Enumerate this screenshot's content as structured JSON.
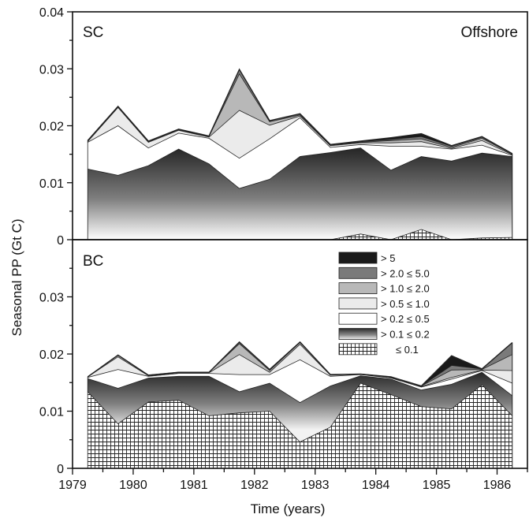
{
  "figure": {
    "ylabel": "Seasonal PP (Gt C)",
    "xlabel": "Time (years)"
  },
  "chart_data": [
    {
      "type": "area",
      "panel": "SC",
      "panel_label": "SC",
      "region_label": "Offshore",
      "stacked": true,
      "ylim": [
        0,
        0.04
      ],
      "yticks": [
        "0.04",
        "0.03",
        "0.02",
        "0.01",
        "0"
      ],
      "xlim": [
        1979,
        1986.5
      ],
      "x": [
        1979.25,
        1979.75,
        1980.25,
        1980.75,
        1981.25,
        1981.75,
        1982.25,
        1982.75,
        1983.25,
        1983.75,
        1984.25,
        1984.75,
        1985.25,
        1985.75,
        1986.25
      ],
      "series": [
        {
          "name": "≤ 0.1",
          "fill": "hatch",
          "values": [
            0,
            0,
            0,
            0,
            0,
            0,
            0,
            0,
            0,
            0.001,
            0,
            0.0018,
            0,
            0.0003,
            0.0004
          ]
        },
        {
          "name": "> 0.1 ≤ 0.2",
          "fill": "gradient",
          "values": [
            0.0124,
            0.0113,
            0.013,
            0.0159,
            0.0133,
            0.009,
            0.0106,
            0.0146,
            0.0153,
            0.0151,
            0.0122,
            0.0128,
            0.0138,
            0.0149,
            0.0142
          ]
        },
        {
          "name": "> 0.2 ≤ 0.5",
          "fill": "#ffffff",
          "values": [
            0.0047,
            0.0087,
            0.0031,
            0.0028,
            0.0045,
            0.0053,
            0.0071,
            0.0068,
            0.0009,
            0.0006,
            0.0042,
            0.0018,
            0.0021,
            0.0014,
            0.0002
          ]
        },
        {
          "name": "> 0.5 ≤ 1.0",
          "fill": "#ebebeb",
          "values": [
            0.0001,
            0.0032,
            0.001,
            0.0005,
            0.0002,
            0.0084,
            0.0024,
            0.0003,
            0.0003,
            0.0003,
            0.0006,
            0.0008,
            0.0001,
            0.0008,
            0.0001
          ]
        },
        {
          "name": "> 1.0 ≤ 2.0",
          "fill": "#b8b8b8",
          "values": [
            0.0001,
            0.0001,
            0.0001,
            0.0001,
            0.0001,
            0.0064,
            0.0006,
            0.0002,
            0.0001,
            0.0001,
            0.0004,
            0.0005,
            0.0002,
            0.0004,
            0.0001
          ]
        },
        {
          "name": "> 2.0 ≤ 5.0",
          "fill": "#7a7a7a",
          "values": [
            0.0001,
            0.0001,
            0.0001,
            0.0001,
            0.0001,
            0.0008,
            0.0002,
            0.0002,
            0.0001,
            0.0001,
            0.0002,
            0.0004,
            0.0002,
            0.0002,
            0.0001
          ]
        },
        {
          "name": "> 5",
          "fill": "#1a1a1a",
          "values": [
            0,
            0,
            0,
            0,
            0,
            0,
            0,
            0,
            0,
            0.0001,
            0.0003,
            0.0005,
            0.0001,
            0.0001,
            0
          ]
        }
      ]
    },
    {
      "type": "area",
      "panel": "BC",
      "panel_label": "BC",
      "stacked": true,
      "ylim": [
        0,
        0.04
      ],
      "yticks": [
        "0.03",
        "0.02",
        "0.01",
        "0"
      ],
      "xlim": [
        1979,
        1986.5
      ],
      "xticks": [
        "1979",
        "1980",
        "1981",
        "1982",
        "1983",
        "1984",
        "1985",
        "1986"
      ],
      "x": [
        1979.25,
        1979.75,
        1980.25,
        1980.75,
        1981.25,
        1981.75,
        1982.25,
        1982.75,
        1983.25,
        1983.75,
        1984.25,
        1984.75,
        1985.25,
        1985.75,
        1986.25
      ],
      "legend_position": "top-right",
      "series": [
        {
          "name": "≤ 0.1",
          "fill": "hatch",
          "values": [
            0.0134,
            0.0078,
            0.0116,
            0.0119,
            0.0092,
            0.0097,
            0.01,
            0.0046,
            0.0072,
            0.0149,
            0.0129,
            0.0108,
            0.0104,
            0.0146,
            0.0092
          ]
        },
        {
          "name": "> 0.1 ≤ 0.2",
          "fill": "gradient",
          "values": [
            0.0023,
            0.0062,
            0.0042,
            0.0042,
            0.0069,
            0.0037,
            0.0049,
            0.0069,
            0.0072,
            0.0013,
            0.0027,
            0.0029,
            0.0043,
            0.0022,
            0.0035
          ]
        },
        {
          "name": "> 0.2 ≤ 0.5",
          "fill": "#ffffff",
          "values": [
            0.0002,
            0.0033,
            0.0003,
            0.0005,
            0.0005,
            0.003,
            0.0015,
            0.0075,
            0.0017,
            0.0002,
            0.0002,
            0.0005,
            0.0009,
            0.0003,
            0.0022
          ]
        },
        {
          "name": "> 0.5 ≤ 1.0",
          "fill": "#ebebeb",
          "values": [
            0.0001,
            0.0022,
            0.0001,
            0.0001,
            0.0001,
            0.0035,
            0.0004,
            0.0027,
            0.0002,
            0.0001,
            0.0001,
            0.0001,
            0.0003,
            0.0001,
            0.0022
          ]
        },
        {
          "name": "> 1.0 ≤ 2.0",
          "fill": "#b8b8b8",
          "values": [
            0,
            0.0003,
            0.0001,
            0.0001,
            0.0001,
            0.0019,
            0.0003,
            0.0003,
            0.0001,
            0,
            0.0001,
            0.0001,
            0.0013,
            0.0001,
            0.0028
          ]
        },
        {
          "name": "> 2.0 ≤ 5.0",
          "fill": "#7a7a7a",
          "values": [
            0,
            0,
            0,
            0,
            0,
            0.0003,
            0.0002,
            0.0001,
            0,
            0,
            0,
            0,
            0.0008,
            0.0001,
            0.0021
          ]
        },
        {
          "name": "> 5",
          "fill": "#1a1a1a",
          "values": [
            0,
            0,
            0,
            0,
            0,
            0,
            0,
            0,
            0,
            0,
            0,
            0,
            0.0017,
            0,
            0
          ]
        }
      ]
    }
  ]
}
